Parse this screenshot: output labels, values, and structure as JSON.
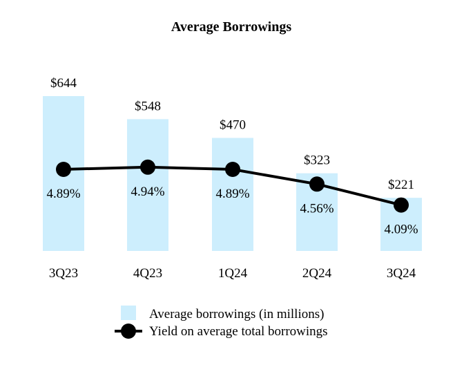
{
  "chart_data": {
    "type": "bar+line",
    "title": "Average Borrowings",
    "categories": [
      "3Q23",
      "4Q23",
      "1Q24",
      "2Q24",
      "3Q24"
    ],
    "series": [
      {
        "name": "Average borrowings (in millions)",
        "kind": "bar",
        "color": "#cdeefd",
        "values": [
          644,
          548,
          470,
          323,
          221
        ],
        "labels": [
          "$644",
          "$548",
          "$470",
          "$323",
          "$221"
        ]
      },
      {
        "name": "Yield on average total borrowings",
        "kind": "line",
        "color": "#000000",
        "values": [
          4.89,
          4.94,
          4.89,
          4.56,
          4.09
        ],
        "labels": [
          "4.89%",
          "4.94%",
          "4.89%",
          "4.56%",
          "4.09%"
        ]
      }
    ],
    "bar_ylim": [
      0,
      644
    ],
    "line_ylim": [
      0,
      5
    ],
    "legend_position": "bottom-center"
  }
}
